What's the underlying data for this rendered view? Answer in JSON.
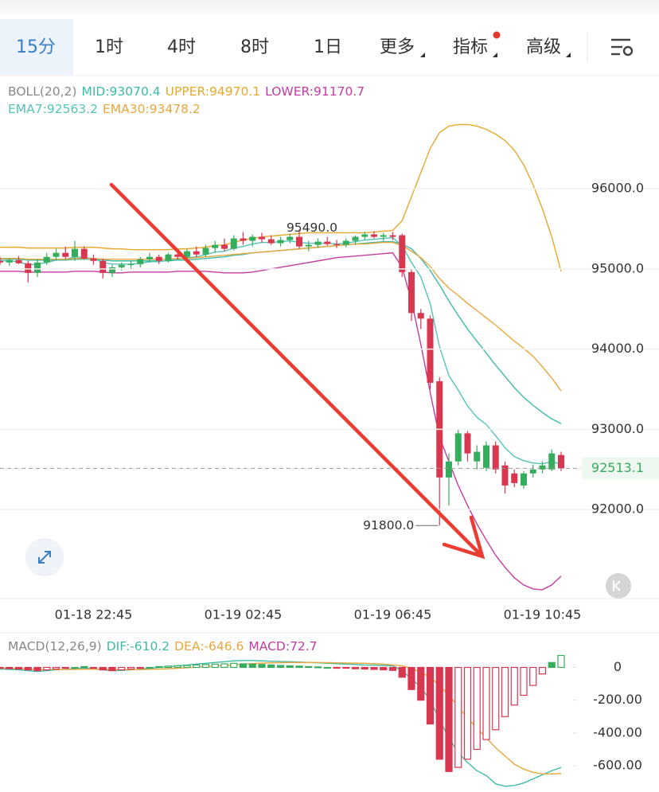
{
  "toolbar": {
    "tabs": [
      "15分",
      "1时",
      "4时",
      "8时",
      "1日",
      "更多",
      "指标",
      "高级"
    ],
    "active": 0
  },
  "chart_data": [
    {
      "type": "candlestick",
      "title": "BOLL(20,2)",
      "categories": [
        null,
        null,
        null,
        null,
        null,
        null,
        null,
        null,
        null,
        null,
        "01-18 22:45",
        null,
        null,
        null,
        null,
        null,
        null,
        null,
        null,
        null,
        null,
        null,
        null,
        null,
        null,
        null,
        "01-19 02:45",
        null,
        null,
        null,
        null,
        null,
        null,
        null,
        null,
        null,
        null,
        null,
        null,
        null,
        null,
        null,
        "01-19 06:45",
        null,
        null,
        null,
        null,
        null,
        null,
        null,
        null,
        null,
        null,
        null,
        null,
        null,
        null,
        null,
        "01-19 10:45",
        null,
        null
      ],
      "ohlc": [
        [
          95100,
          95150,
          95050,
          95080
        ],
        [
          95080,
          95130,
          95040,
          95110
        ],
        [
          95110,
          95160,
          95060,
          95070
        ],
        [
          95070,
          95100,
          94830,
          94950
        ],
        [
          94950,
          95120,
          94900,
          95080
        ],
        [
          95080,
          95200,
          95050,
          95150
        ],
        [
          95150,
          95250,
          95100,
          95200
        ],
        [
          95200,
          95280,
          95120,
          95150
        ],
        [
          95150,
          95350,
          95100,
          95250
        ],
        [
          95250,
          95280,
          95120,
          95130
        ],
        [
          95130,
          95180,
          95050,
          95100
        ],
        [
          95100,
          95130,
          94880,
          94950
        ],
        [
          94950,
          95050,
          94900,
          95020
        ],
        [
          95020,
          95080,
          94980,
          95050
        ],
        [
          95050,
          95100,
          95000,
          95060
        ],
        [
          95060,
          95150,
          95020,
          95120
        ],
        [
          95120,
          95200,
          95080,
          95150
        ],
        [
          95150,
          95180,
          95060,
          95100
        ],
        [
          95100,
          95200,
          95080,
          95180
        ],
        [
          95180,
          95230,
          95120,
          95150
        ],
        [
          95150,
          95250,
          95100,
          95220
        ],
        [
          95220,
          95280,
          95150,
          95180
        ],
        [
          95180,
          95300,
          95150,
          95260
        ],
        [
          95260,
          95350,
          95200,
          95300
        ],
        [
          95300,
          95380,
          95220,
          95250
        ],
        [
          95250,
          95420,
          95230,
          95380
        ],
        [
          95380,
          95460,
          95300,
          95350
        ],
        [
          95350,
          95430,
          95280,
          95400
        ],
        [
          95400,
          95450,
          95330,
          95370
        ],
        [
          95370,
          95420,
          95300,
          95320
        ],
        [
          95320,
          95400,
          95280,
          95360
        ],
        [
          95360,
          95440,
          95320,
          95400
        ],
        [
          95400,
          95490,
          95250,
          95280
        ],
        [
          95280,
          95350,
          95220,
          95300
        ],
        [
          95300,
          95380,
          95260,
          95340
        ],
        [
          95340,
          95400,
          95290,
          95310
        ],
        [
          95310,
          95360,
          95260,
          95300
        ],
        [
          95300,
          95380,
          95270,
          95350
        ],
        [
          95350,
          95420,
          95300,
          95400
        ],
        [
          95400,
          95460,
          95360,
          95430
        ],
        [
          95430,
          95470,
          95380,
          95400
        ],
        [
          95400,
          95450,
          95350,
          95420
        ],
        [
          95420,
          95460,
          95360,
          95400
        ],
        [
          95420,
          95440,
          94900,
          94960
        ],
        [
          94960,
          95000,
          94350,
          94450
        ],
        [
          94450,
          94500,
          94250,
          94380
        ],
        [
          94380,
          94420,
          93500,
          93580
        ],
        [
          93600,
          93650,
          91800,
          92400
        ],
        [
          92400,
          92700,
          92050,
          92600
        ],
        [
          92600,
          93000,
          92550,
          92950
        ],
        [
          92950,
          92980,
          92600,
          92700
        ],
        [
          92600,
          92800,
          92500,
          92720
        ],
        [
          92520,
          92850,
          92480,
          92800
        ],
        [
          92800,
          92850,
          92450,
          92500
        ],
        [
          92550,
          92600,
          92200,
          92300
        ],
        [
          92450,
          92500,
          92280,
          92330
        ],
        [
          92300,
          92480,
          92260,
          92450
        ],
        [
          92450,
          92560,
          92400,
          92500
        ],
        [
          92500,
          92600,
          92450,
          92550
        ],
        [
          92500,
          92750,
          92480,
          92700
        ],
        [
          92680,
          92720,
          92480,
          92513.1
        ]
      ],
      "up_color": "#35ad5c",
      "down_color": "#d93650",
      "high_label": "95490.0",
      "low_label": "91800.0",
      "last_label": "92513.1",
      "series": [
        {
          "name": "MID:93070.4",
          "color": "#3dbba8",
          "values": [
            95120,
            95120,
            95120,
            95110,
            95110,
            95110,
            95110,
            95110,
            95120,
            95120,
            95120,
            95110,
            95100,
            95100,
            95100,
            95100,
            95100,
            95100,
            95100,
            95110,
            95110,
            95120,
            95130,
            95140,
            95150,
            95170,
            95180,
            95200,
            95210,
            95220,
            95230,
            95240,
            95250,
            95260,
            95270,
            95280,
            95290,
            95300,
            95310,
            95320,
            95330,
            95340,
            95340,
            95310,
            95250,
            95130,
            94980,
            94800,
            94600,
            94420,
            94250,
            94100,
            93950,
            93800,
            93660,
            93520,
            93400,
            93300,
            93210,
            93130,
            93070.4
          ]
        },
        {
          "name": "UPPER:94970.1",
          "color": "#e6a92c",
          "values": [
            95270,
            95270,
            95270,
            95260,
            95260,
            95260,
            95260,
            95260,
            95270,
            95270,
            95270,
            95260,
            95250,
            95250,
            95240,
            95240,
            95240,
            95240,
            95240,
            95250,
            95250,
            95260,
            95270,
            95290,
            95300,
            95330,
            95360,
            95380,
            95400,
            95410,
            95420,
            95430,
            95440,
            95450,
            95450,
            95450,
            95450,
            95450,
            95450,
            95450,
            95460,
            95470,
            95480,
            95600,
            95900,
            96200,
            96500,
            96700,
            96780,
            96800,
            96800,
            96780,
            96740,
            96680,
            96600,
            96480,
            96300,
            96050,
            95750,
            95400,
            94970.1
          ]
        },
        {
          "name": "LOWER:91170.7",
          "color": "#c43c9f",
          "values": [
            94970,
            94970,
            94970,
            94960,
            94960,
            94960,
            94960,
            94960,
            94970,
            94970,
            94970,
            94960,
            94950,
            94950,
            94960,
            94960,
            94960,
            94960,
            94960,
            94970,
            94970,
            94970,
            94970,
            94960,
            94950,
            94950,
            94950,
            94960,
            94980,
            95000,
            95020,
            95040,
            95060,
            95080,
            95100,
            95120,
            95140,
            95150,
            95160,
            95170,
            95180,
            95190,
            95200,
            95020,
            94600,
            94060,
            93460,
            92900,
            92600,
            92300,
            92050,
            91820,
            91620,
            91430,
            91280,
            91150,
            91060,
            91010,
            91000,
            91060,
            91170.7
          ]
        },
        {
          "name": "EMA7:92563.2",
          "color": "#54c4b8",
          "values": [
            95100,
            95100,
            95090,
            95050,
            95060,
            95080,
            95110,
            95120,
            95150,
            95140,
            95130,
            95080,
            95060,
            95060,
            95060,
            95070,
            95090,
            95090,
            95110,
            95120,
            95140,
            95150,
            95180,
            95210,
            95220,
            95260,
            95280,
            95310,
            95330,
            95330,
            95340,
            95350,
            95330,
            95320,
            95320,
            95320,
            95310,
            95320,
            95340,
            95360,
            95370,
            95380,
            95390,
            95290,
            95080,
            94900,
            94570,
            94030,
            93670,
            93490,
            93290,
            93150,
            93060,
            92920,
            92770,
            92660,
            92610,
            92580,
            92570,
            92600,
            92563.2
          ]
        },
        {
          "name": "EMA30:93478.2",
          "color": "#e9a73d",
          "values": [
            95130,
            95130,
            95130,
            95120,
            95120,
            95120,
            95120,
            95120,
            95130,
            95130,
            95130,
            95120,
            95120,
            95120,
            95120,
            95120,
            95120,
            95120,
            95120,
            95130,
            95130,
            95140,
            95150,
            95160,
            95170,
            95180,
            95190,
            95200,
            95210,
            95220,
            95230,
            95240,
            95250,
            95260,
            95270,
            95280,
            95290,
            95300,
            95310,
            95310,
            95320,
            95330,
            95330,
            95290,
            95220,
            95140,
            95030,
            94880,
            94760,
            94670,
            94570,
            94480,
            94390,
            94300,
            94200,
            94100,
            94010,
            93910,
            93780,
            93640,
            93478.2
          ]
        }
      ],
      "ylim": [
        90890,
        97360
      ],
      "yticks": [
        {
          "value": 92000,
          "label": "92000.0"
        },
        {
          "value": 93000,
          "label": "93000.0"
        },
        {
          "value": 94000,
          "label": "94000.0"
        },
        {
          "value": 95000,
          "label": "95000.0"
        },
        {
          "value": 96000,
          "label": "96000.0"
        }
      ],
      "grid": true
    },
    {
      "type": "macd",
      "title": "MACD(12,26,9)",
      "up_color": "#35ad5c",
      "down_color": "#d93650",
      "series": [
        {
          "name": "DIF:-610.2",
          "type": "line",
          "color": "#3dbba8",
          "values": [
            -10,
            -12,
            -15,
            -20,
            -25,
            -20,
            -15,
            -12,
            -8,
            -5,
            -8,
            -15,
            -20,
            -18,
            -15,
            -10,
            -5,
            0,
            5,
            10,
            15,
            20,
            25,
            30,
            35,
            40,
            42,
            42,
            40,
            38,
            36,
            35,
            33,
            30,
            28,
            25,
            22,
            20,
            18,
            15,
            14,
            12,
            10,
            -20,
            -70,
            -120,
            -200,
            -320,
            -430,
            -520,
            -580,
            -630,
            -660,
            -710,
            -725,
            -720,
            -705,
            -680,
            -655,
            -630,
            -610.2
          ]
        },
        {
          "name": "DEA:-646.6",
          "type": "line",
          "color": "#e9a73d",
          "values": [
            -5,
            -6,
            -8,
            -10,
            -12,
            -13,
            -13,
            -13,
            -12,
            -11,
            -10,
            -11,
            -12,
            -13,
            -13,
            -13,
            -12,
            -10,
            -8,
            -5,
            -2,
            2,
            5,
            8,
            12,
            16,
            20,
            23,
            26,
            28,
            29,
            30,
            30,
            30,
            30,
            29,
            28,
            27,
            26,
            25,
            23,
            20,
            15,
            10,
            -5,
            -30,
            -60,
            -110,
            -170,
            -240,
            -310,
            -370,
            -430,
            -490,
            -540,
            -590,
            -620,
            -640,
            -650,
            -650,
            -646.6
          ]
        },
        {
          "name": "MACD:72.7",
          "type": "histogram",
          "color": "#c43c9f",
          "values": [
            -5,
            -8,
            -10,
            -15,
            -20,
            -15,
            -10,
            -5,
            0,
            5,
            -5,
            -15,
            -20,
            -15,
            -10,
            -5,
            0,
            5,
            8,
            10,
            12,
            15,
            18,
            20,
            22,
            25,
            22,
            20,
            18,
            15,
            12,
            10,
            8,
            5,
            3,
            0,
            -3,
            -5,
            -8,
            -10,
            -12,
            -15,
            -18,
            -60,
            -135,
            -200,
            -345,
            -560,
            -635,
            -610,
            -560,
            -500,
            -440,
            -380,
            -300,
            -230,
            -170,
            -110,
            -40,
            30,
            72.7
          ]
        }
      ],
      "ylim": [
        -760,
        80
      ],
      "yticks": [
        {
          "value": -600,
          "label": "-600.00"
        },
        {
          "value": -400,
          "label": "-400.00"
        },
        {
          "value": -200,
          "label": "-200.00"
        },
        0
      ]
    }
  ]
}
